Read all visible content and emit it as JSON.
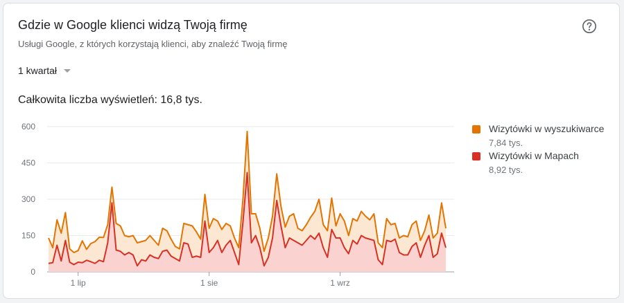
{
  "card": {
    "title": "Gdzie w Google klienci widzą Twoją firmę",
    "subtitle": "Usługi Google, z których korzystają klienci, aby znaleźć Twoją firmę",
    "help_icon": "help-circle-icon",
    "period_label": "1 kwartał",
    "dropdown_icon": "caret-down-icon",
    "total_label": "Całkowita liczba wyświetleń: 16,8 tys."
  },
  "legend": [
    {
      "name": "Wizytówki w wyszukiwarce",
      "value": "7,84 tys.",
      "color": "#e37400"
    },
    {
      "name": "Wizytówki w Mapach",
      "value": "8,92 tys.",
      "color": "#d93025"
    }
  ],
  "chart_data": {
    "type": "area",
    "stacked": true,
    "y_ticks": [
      "0",
      "150",
      "300",
      "450",
      "600"
    ],
    "ylim": [
      0,
      600
    ],
    "x_ticks": [
      {
        "label": "1 lip",
        "index": 7
      },
      {
        "label": "1 sie",
        "index": 38
      },
      {
        "label": "1 wrz",
        "index": 69
      }
    ],
    "fills": {
      "search": "#fce8d2",
      "maps": "#fad2cf"
    },
    "series": [
      {
        "name": "Wizytówki w Mapach",
        "key": "maps",
        "color": "#d93025",
        "values": [
          35,
          38,
          110,
          45,
          130,
          40,
          30,
          40,
          38,
          48,
          42,
          35,
          48,
          42,
          120,
          285,
          90,
          85,
          70,
          80,
          70,
          25,
          50,
          45,
          70,
          60,
          55,
          85,
          90,
          65,
          55,
          45,
          120,
          115,
          60,
          65,
          60,
          210,
          80,
          100,
          130,
          80,
          110,
          130,
          80,
          30,
          205,
          410,
          120,
          150,
          100,
          25,
          60,
          140,
          295,
          190,
          100,
          140,
          130,
          120,
          110,
          130,
          150,
          135,
          160,
          100,
          60,
          175,
          140,
          140,
          100,
          75,
          130,
          115,
          150,
          140,
          135,
          130,
          50,
          30,
          130,
          125,
          135,
          80,
          70,
          70,
          105,
          120,
          60,
          110,
          150,
          60,
          75,
          160,
          100
        ]
      },
      {
        "name": "Wizytówki w wyszukiwarce",
        "key": "search",
        "color": "#e37400",
        "values": [
          105,
          62,
          105,
          115,
          115,
          55,
          50,
          48,
          90,
          45,
          75,
          90,
          95,
          100,
          75,
          65,
          110,
          105,
          80,
          65,
          80,
          95,
          75,
          85,
          80,
          70,
          55,
          95,
          80,
          70,
          50,
          50,
          80,
          80,
          130,
          100,
          75,
          110,
          100,
          120,
          80,
          95,
          90,
          60,
          60,
          70,
          95,
          170,
          120,
          90,
          80,
          60,
          80,
          90,
          110,
          80,
          85,
          90,
          110,
          60,
          60,
          65,
          75,
          115,
          140,
          95,
          110,
          130,
          50,
          100,
          110,
          75,
          90,
          95,
          100,
          90,
          80,
          110,
          70,
          70,
          90,
          70,
          65,
          60,
          80,
          75,
          90,
          90,
          70,
          60,
          85,
          80,
          85,
          125,
          80
        ]
      }
    ]
  }
}
